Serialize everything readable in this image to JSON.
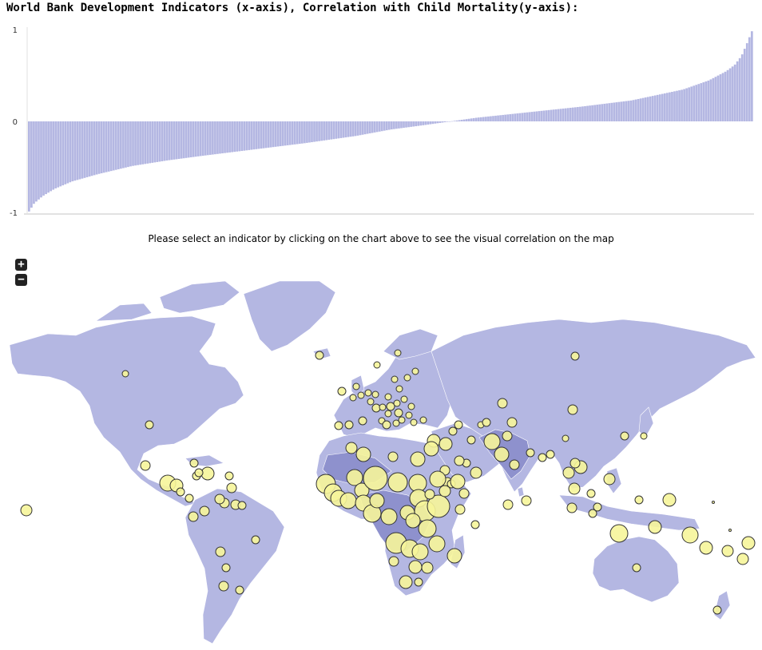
{
  "header": {
    "title": "World Bank Development Indicators (x-axis), Correlation with Child Mortality(y-axis):"
  },
  "instruction": "Please select an indicator by clicking on the chart above to see the visual correlation on the map",
  "map_controls": {
    "zoom_in_label": "+",
    "zoom_out_label": "−"
  },
  "colors": {
    "bars": "#b4b7e2",
    "land": "#b4b7e2",
    "land_dark": "#8e91cd",
    "bubbles": "#f6f59a"
  },
  "chart_data": {
    "type": "bar",
    "title": "World Bank Development Indicators (x-axis), Correlation with Child Mortality(y-axis):",
    "xlabel": "",
    "ylabel": "",
    "ylim": [
      -1,
      1
    ],
    "yticks": [
      "1",
      "0",
      "-1"
    ],
    "sorted": "ascending",
    "n_bars": 300,
    "profile_points": [
      [
        0,
        -0.99
      ],
      [
        3,
        -0.9
      ],
      [
        8,
        -0.82
      ],
      [
        15,
        -0.74
      ],
      [
        25,
        -0.66
      ],
      [
        40,
        -0.58
      ],
      [
        60,
        -0.49
      ],
      [
        80,
        -0.43
      ],
      [
        100,
        -0.38
      ],
      [
        130,
        -0.31
      ],
      [
        160,
        -0.24
      ],
      [
        190,
        -0.16
      ],
      [
        210,
        -0.09
      ],
      [
        230,
        -0.04
      ],
      [
        245,
        0.0
      ],
      [
        260,
        0.04
      ],
      [
        290,
        0.1
      ],
      [
        320,
        0.16
      ],
      [
        350,
        0.23
      ],
      [
        380,
        0.35
      ],
      [
        395,
        0.45
      ],
      [
        405,
        0.55
      ],
      [
        410,
        0.62
      ],
      [
        414,
        0.72
      ],
      [
        417,
        0.85
      ],
      [
        420,
        0.99
      ]
    ]
  },
  "map_data": {
    "type": "bubble-map",
    "bubbles": [
      [
        33,
        639,
        7
      ],
      [
        157,
        468,
        4
      ],
      [
        187,
        532,
        5
      ],
      [
        182,
        583,
        6
      ],
      [
        210,
        605,
        10
      ],
      [
        221,
        608,
        8
      ],
      [
        226,
        616,
        5
      ],
      [
        237,
        624,
        5
      ],
      [
        243,
        580,
        5
      ],
      [
        246,
        596,
        5
      ],
      [
        260,
        593,
        8
      ],
      [
        249,
        592,
        5
      ],
      [
        287,
        596,
        5
      ],
      [
        290,
        611,
        6
      ],
      [
        281,
        630,
        6
      ],
      [
        295,
        632,
        6
      ],
      [
        303,
        633,
        5
      ],
      [
        242,
        647,
        6
      ],
      [
        275,
        625,
        6
      ],
      [
        256,
        640,
        6
      ],
      [
        276,
        691,
        6
      ],
      [
        283,
        711,
        5
      ],
      [
        280,
        734,
        6
      ],
      [
        300,
        739,
        5
      ],
      [
        320,
        676,
        5
      ],
      [
        400,
        445,
        5
      ],
      [
        428,
        490,
        5
      ],
      [
        446,
        484,
        4
      ],
      [
        442,
        498,
        4
      ],
      [
        452,
        495,
        4
      ],
      [
        461,
        492,
        4
      ],
      [
        470,
        494,
        4
      ],
      [
        464,
        503,
        4
      ],
      [
        471,
        511,
        5
      ],
      [
        479,
        510,
        4
      ],
      [
        489,
        509,
        5
      ],
      [
        486,
        497,
        4
      ],
      [
        497,
        505,
        4
      ],
      [
        506,
        500,
        4
      ],
      [
        515,
        509,
        4
      ],
      [
        499,
        517,
        5
      ],
      [
        486,
        518,
        4
      ],
      [
        478,
        527,
        4
      ],
      [
        484,
        532,
        5
      ],
      [
        496,
        530,
        4
      ],
      [
        503,
        526,
        4
      ],
      [
        512,
        520,
        4
      ],
      [
        518,
        529,
        4
      ],
      [
        530,
        526,
        4
      ],
      [
        500,
        487,
        4
      ],
      [
        494,
        475,
        4
      ],
      [
        510,
        473,
        4
      ],
      [
        520,
        465,
        4
      ],
      [
        498,
        442,
        4
      ],
      [
        472,
        457,
        4
      ],
      [
        454,
        527,
        5
      ],
      [
        437,
        532,
        5
      ],
      [
        424,
        533,
        5
      ],
      [
        440,
        561,
        7
      ],
      [
        455,
        569,
        9
      ],
      [
        492,
        572,
        6
      ],
      [
        523,
        575,
        9
      ],
      [
        543,
        552,
        8
      ],
      [
        540,
        562,
        9
      ],
      [
        558,
        556,
        8
      ],
      [
        567,
        540,
        5
      ],
      [
        574,
        532,
        5
      ],
      [
        590,
        551,
        5
      ],
      [
        602,
        532,
        4
      ],
      [
        609,
        529,
        5
      ],
      [
        616,
        553,
        10
      ],
      [
        628,
        569,
        9
      ],
      [
        635,
        546,
        6
      ],
      [
        644,
        582,
        6
      ],
      [
        629,
        505,
        6
      ],
      [
        641,
        529,
        6
      ],
      [
        664,
        567,
        5
      ],
      [
        679,
        573,
        5
      ],
      [
        689,
        569,
        5
      ],
      [
        717,
        513,
        6
      ],
      [
        720,
        446,
        5
      ],
      [
        708,
        549,
        4
      ],
      [
        782,
        546,
        5
      ],
      [
        806,
        546,
        4
      ],
      [
        763,
        600,
        7
      ],
      [
        727,
        585,
        8
      ],
      [
        720,
        580,
        6
      ],
      [
        712,
        592,
        7
      ],
      [
        719,
        612,
        7
      ],
      [
        716,
        636,
        6
      ],
      [
        740,
        618,
        5
      ],
      [
        748,
        635,
        5
      ],
      [
        742,
        643,
        5
      ],
      [
        800,
        626,
        5
      ],
      [
        838,
        626,
        8
      ],
      [
        775,
        668,
        11
      ],
      [
        820,
        660,
        8
      ],
      [
        864,
        670,
        10
      ],
      [
        884,
        686,
        8
      ],
      [
        911,
        690,
        7
      ],
      [
        937,
        680,
        8
      ],
      [
        930,
        700,
        7
      ],
      [
        797,
        711,
        5
      ],
      [
        898,
        764,
        5
      ],
      [
        636,
        632,
        6
      ],
      [
        659,
        627,
        6
      ],
      [
        595,
        657,
        5
      ],
      [
        560,
        604,
        6
      ],
      [
        565,
        606,
        5
      ],
      [
        573,
        603,
        9
      ],
      [
        596,
        592,
        7
      ],
      [
        584,
        580,
        5
      ],
      [
        575,
        577,
        6
      ],
      [
        557,
        589,
        6
      ],
      [
        581,
        618,
        6
      ],
      [
        408,
        606,
        12
      ],
      [
        417,
        617,
        11
      ],
      [
        424,
        624,
        10
      ],
      [
        444,
        598,
        10
      ],
      [
        453,
        614,
        9
      ],
      [
        470,
        599,
        15
      ],
      [
        498,
        604,
        12
      ],
      [
        523,
        605,
        11
      ],
      [
        548,
        600,
        10
      ],
      [
        436,
        627,
        10
      ],
      [
        455,
        630,
        10
      ],
      [
        466,
        643,
        11
      ],
      [
        472,
        627,
        9
      ],
      [
        487,
        647,
        10
      ],
      [
        510,
        642,
        9
      ],
      [
        524,
        624,
        11
      ],
      [
        532,
        640,
        13
      ],
      [
        549,
        634,
        14
      ],
      [
        535,
        662,
        11
      ],
      [
        517,
        652,
        9
      ],
      [
        496,
        680,
        13
      ],
      [
        513,
        687,
        11
      ],
      [
        526,
        691,
        10
      ],
      [
        547,
        681,
        10
      ],
      [
        569,
        696,
        9
      ],
      [
        520,
        710,
        8
      ],
      [
        535,
        711,
        7
      ],
      [
        508,
        729,
        8
      ],
      [
        524,
        729,
        5
      ],
      [
        493,
        703,
        6
      ],
      [
        576,
        638,
        6
      ],
      [
        557,
        615,
        7
      ],
      [
        538,
        619,
        6
      ],
      [
        893,
        629,
        1.5
      ],
      [
        914,
        664,
        1.5
      ]
    ]
  }
}
